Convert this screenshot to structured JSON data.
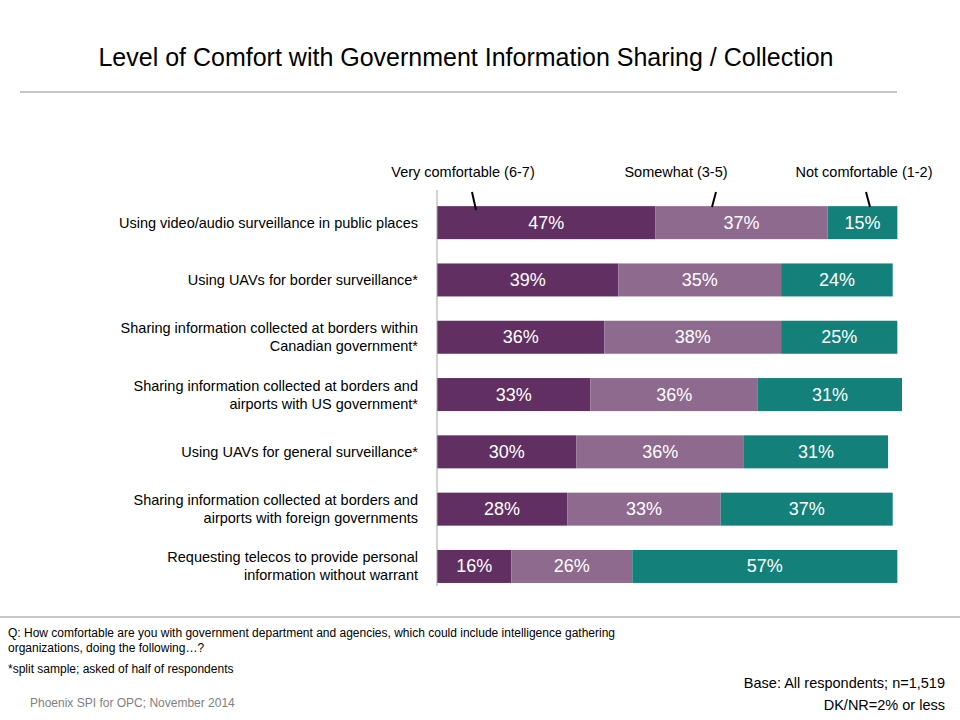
{
  "chart_data": {
    "type": "bar",
    "orientation": "horizontal",
    "stacked": true,
    "data_labels": true,
    "tick_labels": "y",
    "legend": "top",
    "title": "Level of Comfort with Government Information Sharing / Collection",
    "categories": [
      "Using video/audio surveillance in public places",
      "Using UAVs for border surveillance*",
      "Sharing information collected at borders within\nCanadian government*",
      "Sharing information collected at borders and\nairports with US government*",
      "Using UAVs for general surveillance*",
      "Sharing information collected at borders and\nairports with foreign governments",
      "Requesting telecos to provide personal\ninformation without warrant"
    ],
    "series": [
      {
        "name": "Very comfortable (6-7)",
        "color": "#622f62",
        "values": [
          47,
          39,
          36,
          33,
          30,
          28,
          16
        ],
        "value_labels": [
          "47%",
          "39%",
          "36%",
          "33%",
          "30%",
          "28%",
          "16%"
        ]
      },
      {
        "name": "Somewhat (3-5)",
        "color": "#8e6a8e",
        "values": [
          37,
          35,
          38,
          36,
          36,
          33,
          26
        ],
        "value_labels": [
          "37%",
          "35%",
          "38%",
          "36%",
          "36%",
          "33%",
          "26%"
        ]
      },
      {
        "name": "Not comfortable (1-2)",
        "color": "#13807a",
        "values": [
          15,
          24,
          25,
          31,
          31,
          37,
          57
        ],
        "value_labels": [
          "15%",
          "24%",
          "25%",
          "31%",
          "31%",
          "37%",
          "57%"
        ]
      }
    ],
    "xlim": [
      0,
      100
    ],
    "xticks": [],
    "annotations": [
      "Q: How comfortable are you with government department and agencies, which could include intelligence gathering\norganizations, doing the following…?",
      "*split sample; asked of half of respondents",
      "Phoenix SPI for OPC; November 2014",
      "Base: All respondents; n=1,519",
      "DK/NR=2% or less"
    ]
  }
}
